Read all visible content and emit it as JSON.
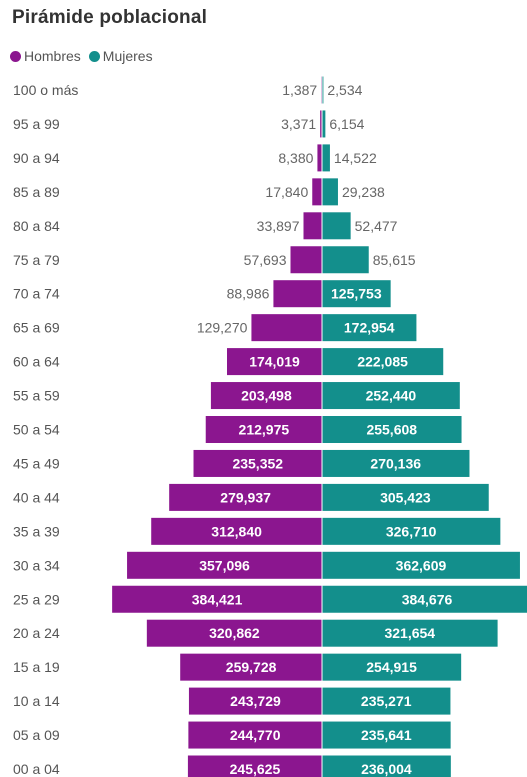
{
  "chart_data": {
    "type": "bar",
    "orientation": "horizontal-population-pyramid",
    "title": "Pirámide poblacional",
    "categories": [
      "100 o más",
      "95 a 99",
      "90 a 94",
      "85 a 89",
      "80 a 84",
      "75 a 79",
      "70 a 74",
      "65 a 69",
      "60 a 64",
      "55 a 59",
      "50 a 54",
      "45 a 49",
      "40 a 44",
      "35 a 39",
      "30 a 34",
      "25 a 29",
      "20 a 24",
      "15 a 19",
      "10 a 14",
      "05 a 09",
      "00 a 04"
    ],
    "series": [
      {
        "name": "Hombres",
        "color": "#8B168F",
        "values": [
          1387,
          3371,
          8380,
          17840,
          33897,
          57693,
          88986,
          129270,
          174019,
          203498,
          212975,
          235352,
          279937,
          312840,
          357096,
          384421,
          320862,
          259728,
          243729,
          244770,
          245625
        ],
        "labels": [
          "1,387",
          "3,371",
          "8,380",
          "17,840",
          "33,897",
          "57,693",
          "88,986",
          "129,270",
          "174,019",
          "203,498",
          "212,975",
          "235,352",
          "279,937",
          "312,840",
          "357,096",
          "384,421",
          "320,862",
          "259,728",
          "243,729",
          "244,770",
          "245,625"
        ]
      },
      {
        "name": "Mujeres",
        "color": "#138F8C",
        "values": [
          2534,
          6154,
          14522,
          29238,
          52477,
          85615,
          125753,
          172954,
          222085,
          252440,
          255608,
          270136,
          305423,
          326710,
          362609,
          384676,
          321654,
          254915,
          235271,
          235641,
          236004
        ],
        "labels": [
          "2,534",
          "6,154",
          "14,522",
          "29,238",
          "52,477",
          "85,615",
          "125,753",
          "172,954",
          "222,085",
          "252,440",
          "255,608",
          "270,136",
          "305,423",
          "326,710",
          "362,609",
          "384,676",
          "321,654",
          "254,915",
          "235,271",
          "235,641",
          "236,004"
        ]
      }
    ],
    "legend_position": "top-left",
    "grid": false
  }
}
